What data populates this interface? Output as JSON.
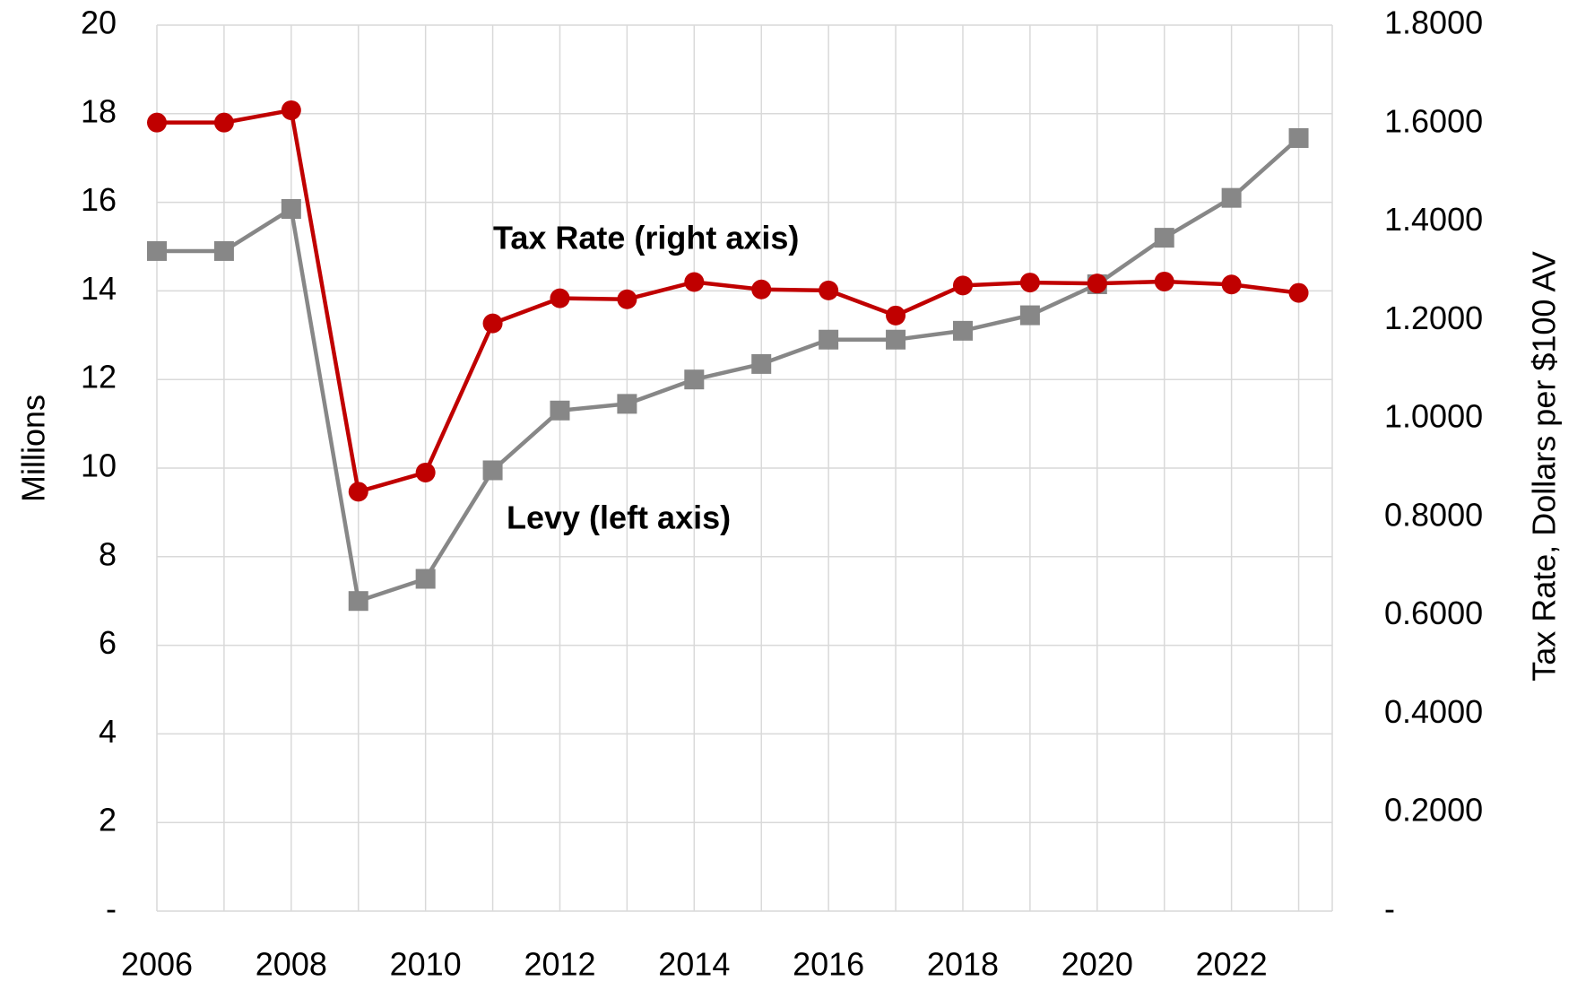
{
  "chart_data": {
    "type": "line",
    "x": [
      2006,
      2007,
      2008,
      2009,
      2010,
      2011,
      2012,
      2013,
      2014,
      2015,
      2016,
      2017,
      2018,
      2019,
      2020,
      2021,
      2022,
      2023
    ],
    "xlim": [
      2006,
      2023.5
    ],
    "xticks": [
      2006,
      2008,
      2010,
      2012,
      2014,
      2016,
      2018,
      2020,
      2022
    ],
    "ylabel": "Millions",
    "ylim": [
      0,
      20
    ],
    "yticks": [
      {
        "value": 0,
        "label": "-"
      },
      2,
      4,
      6,
      8,
      10,
      12,
      14,
      16,
      18,
      20
    ],
    "y2label": "Tax Rate, Dollars per $100 AV",
    "y2lim": [
      0,
      1.8
    ],
    "y2ticks": [
      {
        "value": 0,
        "label": "-"
      },
      {
        "value": 0.2,
        "label": "0.2000"
      },
      {
        "value": 0.4,
        "label": "0.4000"
      },
      {
        "value": 0.6,
        "label": "0.6000"
      },
      {
        "value": 0.8,
        "label": "0.8000"
      },
      {
        "value": 1.0,
        "label": "1.0000"
      },
      {
        "value": 1.2,
        "label": "1.2000"
      },
      {
        "value": 1.4,
        "label": "1.4000"
      },
      {
        "value": 1.6,
        "label": "1.6000"
      },
      {
        "value": 1.8,
        "label": "1.8000"
      }
    ],
    "grid": true,
    "series": [
      {
        "name": "Levy (left axis)",
        "color": "#878787",
        "marker": "square",
        "values": [
          14.9,
          14.9,
          15.85,
          7.0,
          7.5,
          9.95,
          11.3,
          11.45,
          12.0,
          12.35,
          12.9,
          12.9,
          13.1,
          13.45,
          14.15,
          15.2,
          16.1,
          17.45
        ]
      },
      {
        "name": "Tax Rate (right axis)",
        "color": "#c00000",
        "marker": "circle",
        "axis": "y2",
        "values": [
          1.602,
          1.602,
          1.627,
          0.852,
          0.891,
          1.194,
          1.245,
          1.243,
          1.278,
          1.263,
          1.261,
          1.21,
          1.271,
          1.277,
          1.275,
          1.279,
          1.273,
          1.256
        ]
      }
    ]
  }
}
